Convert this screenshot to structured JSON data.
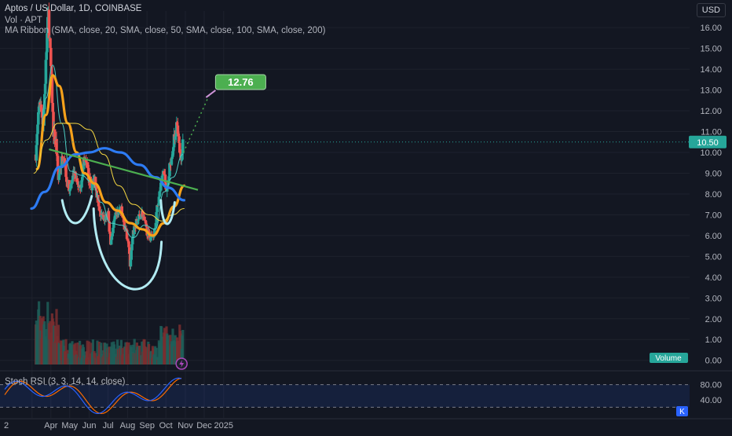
{
  "header": {
    "symbol_line": "Aptos / US Dollar, 1D, COINBASE",
    "vol_line": "Vol · APT",
    "ma_line": "MA Ribbon (SMA, close, 20, SMA, close, 50, SMA, close, 100, SMA, close, 200)",
    "currency": "USD"
  },
  "stoch_label": "Stoch RSI (3, 3, 14, 14, close)",
  "volume_label": "Volume",
  "k_label": "K",
  "colors": {
    "bg": "#131722",
    "up": "#26a69a",
    "down": "#ef5350",
    "ma20": "#4ecdc4",
    "ma50": "#f7a21b",
    "ma100": "#f5d742",
    "ma200": "#2d7bf4",
    "trendline": "#4caf50",
    "annotation": "#b2ebf2",
    "target": "#4caf50",
    "stoch_k": "#2962ff",
    "stoch_d": "#ff6d00"
  },
  "chart_data": [
    {
      "type": "candlestick",
      "price_axis": {
        "ticks": [
          "16.00",
          "15.00",
          "14.00",
          "13.00",
          "12.00",
          "11.00",
          "10.00",
          "9.00",
          "8.00",
          "7.00",
          "6.00",
          "5.00",
          "4.00",
          "3.00",
          "2.00",
          "1.00",
          "0.00"
        ],
        "range": [
          -0.2,
          16.8
        ],
        "current_price": "10.50",
        "target_label": "12.76",
        "target_value": 12.76
      },
      "x_axis": {
        "labels": [
          "2",
          "Apr",
          "May",
          "Jun",
          "Jul",
          "Aug",
          "Sep",
          "Oct",
          "Nov",
          "Dec",
          "2025"
        ]
      },
      "ohlc_path": [
        [
          "2024-03-08",
          9.9
        ],
        [
          "2024-03-14",
          12.5
        ],
        [
          "2024-03-20",
          11.4
        ],
        [
          "2024-03-26",
          15.6
        ],
        [
          "2024-03-28",
          16.6
        ],
        [
          "2024-04-02",
          13.4
        ],
        [
          "2024-04-05",
          11.0
        ],
        [
          "2024-04-09",
          10.5
        ],
        [
          "2024-04-13",
          8.7
        ],
        [
          "2024-04-16",
          9.4
        ],
        [
          "2024-04-22",
          9.9
        ],
        [
          "2024-04-27",
          8.5
        ],
        [
          "2024-05-02",
          8.3
        ],
        [
          "2024-05-08",
          8.9
        ],
        [
          "2024-05-14",
          8.4
        ],
        [
          "2024-05-20",
          8.5
        ],
        [
          "2024-05-23",
          9.7
        ],
        [
          "2024-05-29",
          9.2
        ],
        [
          "2024-06-04",
          8.3
        ],
        [
          "2024-06-10",
          8.8
        ],
        [
          "2024-06-17",
          7.1
        ],
        [
          "2024-06-24",
          6.8
        ],
        [
          "2024-07-01",
          7.0
        ],
        [
          "2024-07-05",
          5.6
        ],
        [
          "2024-07-10",
          6.6
        ],
        [
          "2024-07-15",
          7.1
        ],
        [
          "2024-07-22",
          7.2
        ],
        [
          "2024-07-28",
          6.3
        ],
        [
          "2024-08-02",
          5.8
        ],
        [
          "2024-08-05",
          4.6
        ],
        [
          "2024-08-10",
          6.1
        ],
        [
          "2024-08-16",
          6.7
        ],
        [
          "2024-08-24",
          7.1
        ],
        [
          "2024-09-01",
          6.2
        ],
        [
          "2024-09-06",
          5.9
        ],
        [
          "2024-09-12",
          6.1
        ],
        [
          "2024-09-18",
          7.5
        ],
        [
          "2024-09-23",
          8.4
        ],
        [
          "2024-09-27",
          9.1
        ],
        [
          "2024-10-03",
          8.1
        ],
        [
          "2024-10-08",
          9.5
        ],
        [
          "2024-10-13",
          10.4
        ],
        [
          "2024-10-18",
          11.3
        ],
        [
          "2024-10-22",
          10.3
        ],
        [
          "2024-10-25",
          9.5
        ],
        [
          "2024-10-28",
          10.5
        ]
      ],
      "moving_averages": [
        {
          "label": "SMA 20",
          "values": [
            [
              "2024-03-10",
              9.3
            ],
            [
              "2024-03-24",
              12.6
            ],
            [
              "2024-04-04",
              14.2
            ],
            [
              "2024-04-18",
              11.4
            ],
            [
              "2024-05-02",
              9.1
            ],
            [
              "2024-05-20",
              8.9
            ],
            [
              "2024-06-04",
              8.6
            ],
            [
              "2024-06-20",
              7.6
            ],
            [
              "2024-07-05",
              6.6
            ],
            [
              "2024-07-22",
              6.5
            ],
            [
              "2024-08-10",
              5.9
            ],
            [
              "2024-08-28",
              6.5
            ],
            [
              "2024-09-14",
              6.3
            ],
            [
              "2024-09-28",
              8.1
            ],
            [
              "2024-10-12",
              8.8
            ],
            [
              "2024-10-28",
              9.9
            ]
          ]
        },
        {
          "label": "SMA 50",
          "values": [
            [
              "2024-03-10",
              9.2
            ],
            [
              "2024-03-24",
              11.8
            ],
            [
              "2024-04-04",
              13.7
            ],
            [
              "2024-04-14",
              13.2
            ],
            [
              "2024-04-28",
              11.4
            ],
            [
              "2024-05-12",
              10.0
            ],
            [
              "2024-05-24",
              9.0
            ],
            [
              "2024-06-10",
              8.5
            ],
            [
              "2024-06-28",
              7.6
            ],
            [
              "2024-07-16",
              7.2
            ],
            [
              "2024-08-05",
              6.6
            ],
            [
              "2024-08-25",
              6.3
            ],
            [
              "2024-09-10",
              6.0
            ],
            [
              "2024-09-28",
              6.6
            ],
            [
              "2024-10-14",
              7.4
            ],
            [
              "2024-10-30",
              8.4
            ]
          ]
        },
        {
          "label": "SMA 100",
          "values": [
            [
              "2024-03-05",
              9.0
            ],
            [
              "2024-03-25",
              10.6
            ],
            [
              "2024-04-12",
              11.4
            ],
            [
              "2024-05-10",
              11.4
            ],
            [
              "2024-06-01",
              11.1
            ],
            [
              "2024-06-24",
              9.9
            ],
            [
              "2024-07-18",
              8.4
            ],
            [
              "2024-08-10",
              7.5
            ],
            [
              "2024-09-05",
              7.0
            ],
            [
              "2024-09-25",
              6.7
            ],
            [
              "2024-10-12",
              7.0
            ],
            [
              "2024-10-30",
              7.3
            ]
          ]
        },
        {
          "label": "SMA 200",
          "values": [
            [
              "2024-03-01",
              7.3
            ],
            [
              "2024-03-22",
              8.1
            ],
            [
              "2024-04-15",
              9.3
            ],
            [
              "2024-05-10",
              9.9
            ],
            [
              "2024-06-01",
              10.0
            ],
            [
              "2024-06-25",
              10.2
            ],
            [
              "2024-07-20",
              10.0
            ],
            [
              "2024-08-20",
              9.4
            ],
            [
              "2024-09-15",
              8.8
            ],
            [
              "2024-10-05",
              8.3
            ],
            [
              "2024-10-30",
              7.7
            ]
          ]
        }
      ]
    },
    {
      "type": "stoch_rsi",
      "label": "Stoch RSI (3, 3, 14, 14, close)",
      "y_ticks": [
        "80.00",
        "40.00"
      ],
      "range": [
        0,
        100
      ],
      "bands": [
        80,
        20
      ]
    }
  ]
}
